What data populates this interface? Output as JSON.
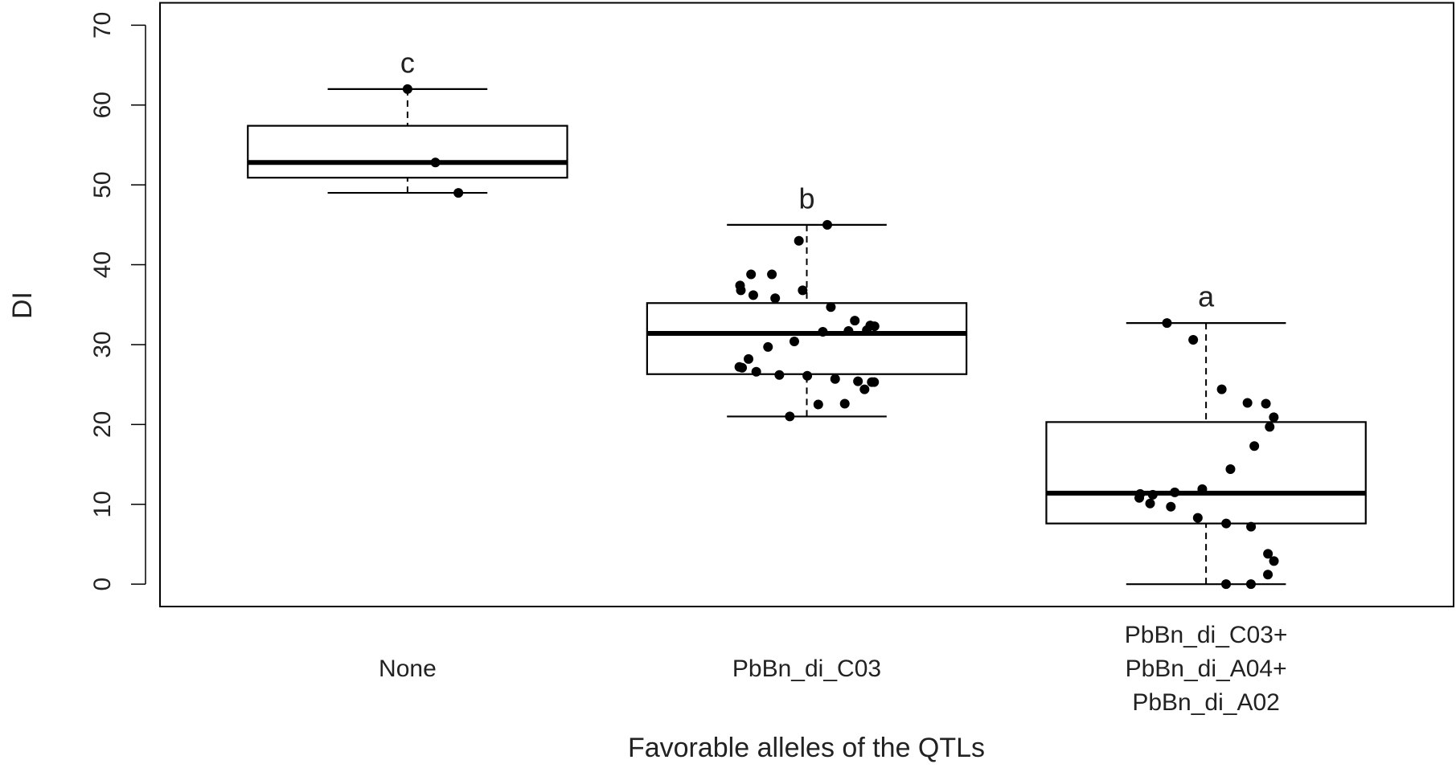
{
  "chart_data": {
    "type": "box",
    "x_label": "Favorable alleles of the QTLs",
    "y_label": "DI",
    "categories": [
      "None",
      "PbBn_di_C03",
      "PbBn_di_C03+\nPbBn_di_A04+\nPbBn_di_A02"
    ],
    "boxes": [
      {
        "whislo": 49,
        "q1": 50.9,
        "med": 52.8,
        "q3": 57.4,
        "whishi": 62,
        "letter": "c",
        "points": [
          62,
          52.8,
          49
        ]
      },
      {
        "whislo": 21,
        "q1": 26.3,
        "med": 31.4,
        "q3": 35.2,
        "whishi": 45,
        "letter": "b",
        "points": [
          45,
          43,
          38.8,
          38.8,
          37.4,
          36.8,
          36.2,
          35.8,
          36.8,
          34.7,
          33,
          32.4,
          32.3,
          31.8,
          31.7,
          31.6,
          30.4,
          29.7,
          28.2,
          27.2,
          27.1,
          26.6,
          26.2,
          26.1,
          25.7,
          25.4,
          25.3,
          25.3,
          24.4,
          22.6,
          22.5,
          21
        ]
      },
      {
        "whislo": 0,
        "q1": 7.6,
        "med": 11.4,
        "q3": 20.3,
        "whishi": 32.7,
        "letter": "a",
        "points": [
          32.7,
          30.6,
          24.4,
          22.7,
          22.6,
          20.9,
          19.7,
          17.3,
          14.4,
          11.9,
          11.5,
          11.2,
          11.3,
          10.8,
          10.1,
          9.7,
          8.3,
          7.6,
          7.2,
          3.8,
          2.9,
          1.2,
          0,
          0
        ]
      }
    ],
    "ylim": [
      -2.8,
      72.8
    ],
    "yticks": [
      0,
      10,
      20,
      30,
      40,
      50,
      60,
      70
    ],
    "color": "#000000"
  }
}
